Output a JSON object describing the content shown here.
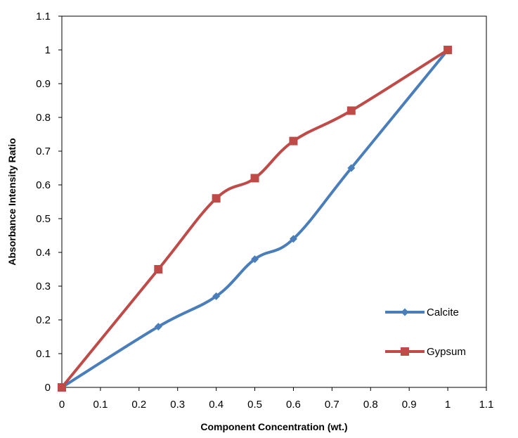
{
  "chart_data": {
    "type": "line",
    "title": "",
    "xlabel": "Component Concentration (wt.)",
    "ylabel": "Absorbance Intensity Ratio",
    "xlim": [
      0,
      1.1
    ],
    "ylim": [
      0,
      1.1
    ],
    "xticks": [
      "0",
      "0.1",
      "0.2",
      "0.3",
      "0.4",
      "0.5",
      "0.6",
      "0.7",
      "0.8",
      "0.9",
      "1",
      "1.1"
    ],
    "yticks": [
      "0",
      "0.1",
      "0.2",
      "0.3",
      "0.4",
      "0.5",
      "0.6",
      "0.7",
      "0.8",
      "0.9",
      "1",
      "1.1"
    ],
    "grid": false,
    "legend_position": "bottom-right",
    "series": [
      {
        "name": "Calcite",
        "color": "#4a7ebb",
        "marker": "diamond",
        "x": [
          0,
          0.25,
          0.4,
          0.5,
          0.6,
          0.75,
          1.0
        ],
        "y": [
          0,
          0.18,
          0.27,
          0.38,
          0.44,
          0.65,
          1.0
        ]
      },
      {
        "name": "Gypsum",
        "color": "#be4b48",
        "marker": "square",
        "x": [
          0,
          0.25,
          0.4,
          0.5,
          0.6,
          0.75,
          1.0
        ],
        "y": [
          0,
          0.35,
          0.56,
          0.62,
          0.73,
          0.82,
          1.0
        ]
      }
    ]
  }
}
